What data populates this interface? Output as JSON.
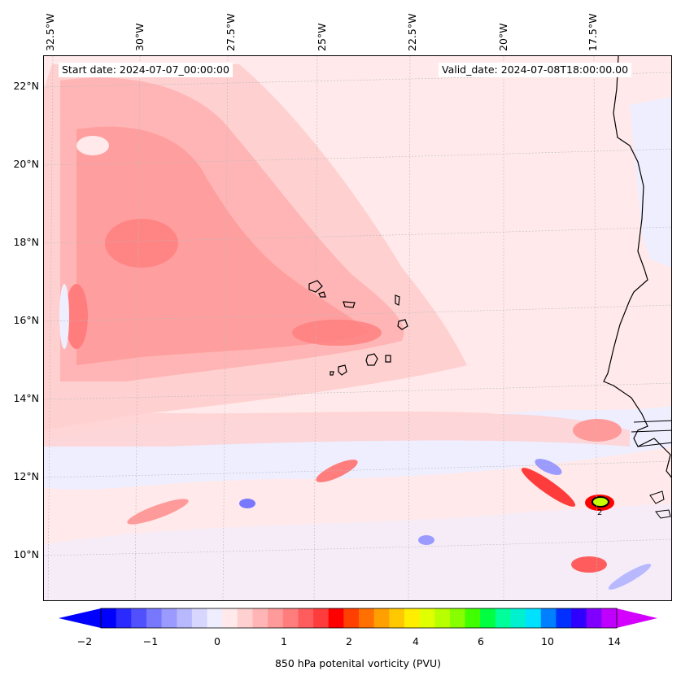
{
  "map": {
    "start_date": "Start date: 2024-07-07_00:00:00",
    "valid_date": "Valid_date: 2024-07-08T18:00:00.00",
    "longitude_labels": [
      "32.5°W",
      "30°W",
      "27.5°W",
      "25°W",
      "22.5°W",
      "20°W",
      "17.5°W"
    ],
    "latitude_labels": [
      "22°N",
      "20°N",
      "18°N",
      "16°N",
      "14°N",
      "12°N",
      "10°N"
    ],
    "contour_label": "2",
    "field": "850 hPa potential vorticity"
  },
  "colorbar": {
    "title": "850 hPa potenital vorticity (PVU)",
    "tick_labels": [
      "−2",
      "−1",
      "0",
      "1",
      "2",
      "4",
      "6",
      "10",
      "14"
    ],
    "colors": [
      "#0000ff",
      "#2a2aff",
      "#5050ff",
      "#7878ff",
      "#9a9aff",
      "#b8b8ff",
      "#d6d6ff",
      "#eeeeff",
      "#ffe9ea",
      "#ffd0d0",
      "#ffb5b5",
      "#ff9a9a",
      "#ff7d7d",
      "#ff5d5d",
      "#ff3c3c",
      "#ff0000",
      "#ff4000",
      "#ff7000",
      "#ffa000",
      "#ffc800",
      "#ffee00",
      "#e0ff00",
      "#b8ff00",
      "#88ff00",
      "#40ff00",
      "#00ff40",
      "#00ff9a",
      "#00f0d0",
      "#00e0ff",
      "#0080ff",
      "#0030ff",
      "#3000ff",
      "#8000ff",
      "#c000ff"
    ],
    "under_color": "#0000ff",
    "over_color": "#d400ff"
  }
}
